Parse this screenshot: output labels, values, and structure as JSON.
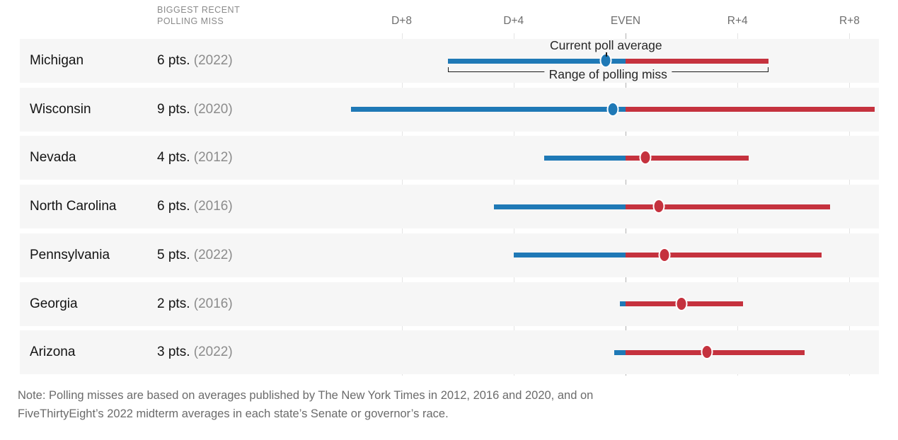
{
  "header": {
    "miss_column_label": "BIGGEST RECENT\nPOLLING MISS"
  },
  "axis": {
    "ticks": [
      {
        "label": "D+8",
        "value": -8
      },
      {
        "label": "D+4",
        "value": -4
      },
      {
        "label": "EVEN",
        "value": 0
      },
      {
        "label": "R+4",
        "value": 4
      },
      {
        "label": "R+8",
        "value": 8
      }
    ]
  },
  "annotations": {
    "current_poll_average": "Current poll average",
    "range_of_polling_miss": "Range of polling miss"
  },
  "states": [
    {
      "state": "Michigan",
      "miss": "6 pts.",
      "year": "(2022)",
      "lo": -6.35,
      "dot": -0.7,
      "hi": 5.1
    },
    {
      "state": "Wisconsin",
      "miss": "9 pts.",
      "year": "(2020)",
      "lo": -9.8,
      "dot": -0.45,
      "hi": 8.9
    },
    {
      "state": "Nevada",
      "miss": "4 pts.",
      "year": "(2012)",
      "lo": -2.9,
      "dot": 0.7,
      "hi": 4.4
    },
    {
      "state": "North Carolina",
      "miss": "6 pts.",
      "year": "(2016)",
      "lo": -4.7,
      "dot": 1.2,
      "hi": 7.3
    },
    {
      "state": "Pennsylvania",
      "miss": "5 pts.",
      "year": "(2022)",
      "lo": -4.0,
      "dot": 1.4,
      "hi": 7.0
    },
    {
      "state": "Georgia",
      "miss": "2 pts.",
      "year": "(2016)",
      "lo": -0.2,
      "dot": 2.0,
      "hi": 4.2
    },
    {
      "state": "Arizona",
      "miss": "3 pts.",
      "year": "(2022)",
      "lo": -0.4,
      "dot": 2.9,
      "hi": 6.4
    }
  ],
  "note": {
    "text": "Note: Polling misses are based on averages published by The New York Times in 2012, 2016 and 2020, and on\nFiveThirtyEight’s 2022 midterm averages in each state’s Senate or governor’s race."
  },
  "colors": {
    "dem_blue": "#1f79b6",
    "rep_red": "#c5323e",
    "row_background": "#f6f6f6",
    "gridline": "#e4e4e4",
    "gridline_even": "#b0b0b0"
  },
  "chart_data": {
    "type": "scatter",
    "title": "",
    "description": "Dot-and-range chart: for each battleground state, the dot is the current poll average and the horizontal bar is the range of polling miss implied by the state's biggest recent polling miss. Blue = Democratic side of EVEN, red = Republican side.",
    "x_axis": {
      "tick_labels": [
        "D+8",
        "D+4",
        "EVEN",
        "R+4",
        "R+8"
      ],
      "tick_values": [
        -8,
        -4,
        0,
        4,
        8
      ],
      "convention": "negative = Democratic margin (D+), positive = Republican margin (R+)",
      "grid": true
    },
    "legend": [
      "Current poll average",
      "Range of polling miss"
    ],
    "points": [
      {
        "state": "Michigan",
        "biggest_recent_miss_pts": 6,
        "miss_year": 2022,
        "current_poll_average": -0.7,
        "range": [
          -6.35,
          5.1
        ]
      },
      {
        "state": "Wisconsin",
        "biggest_recent_miss_pts": 9,
        "miss_year": 2020,
        "current_poll_average": -0.45,
        "range": [
          -9.8,
          8.9
        ]
      },
      {
        "state": "Nevada",
        "biggest_recent_miss_pts": 4,
        "miss_year": 2012,
        "current_poll_average": 0.7,
        "range": [
          -2.9,
          4.4
        ]
      },
      {
        "state": "North Carolina",
        "biggest_recent_miss_pts": 6,
        "miss_year": 2016,
        "current_poll_average": 1.2,
        "range": [
          -4.7,
          7.3
        ]
      },
      {
        "state": "Pennsylvania",
        "biggest_recent_miss_pts": 5,
        "miss_year": 2022,
        "current_poll_average": 1.4,
        "range": [
          -4.0,
          7.0
        ]
      },
      {
        "state": "Georgia",
        "biggest_recent_miss_pts": 2,
        "miss_year": 2016,
        "current_poll_average": 2.0,
        "range": [
          -0.2,
          4.2
        ]
      },
      {
        "state": "Arizona",
        "biggest_recent_miss_pts": 3,
        "miss_year": 2022,
        "current_poll_average": 2.9,
        "range": [
          -0.4,
          6.4
        ]
      }
    ],
    "note": "Note: Polling misses are based on averages published by The New York Times in 2012, 2016 and 2020, and on FiveThirtyEight’s 2022 midterm averages in each state’s Senate or governor’s race."
  }
}
